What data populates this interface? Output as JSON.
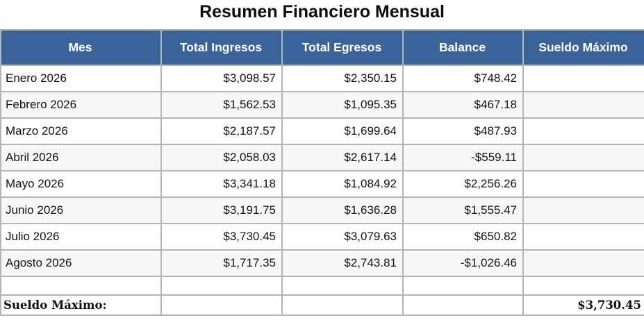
{
  "title": "Resumen Financiero Mensual",
  "colors": {
    "header_bg": "#3a639a",
    "header_text": "#ffffff",
    "row_alt_bg": "#f7f7f7",
    "border": "#b3b5b7",
    "text": "#111111"
  },
  "table": {
    "columns": [
      "Mes",
      "Total Ingresos",
      "Total Egresos",
      "Balance",
      "Sueldo Máximo"
    ],
    "rows": [
      {
        "mes": "Enero 2026",
        "ingresos": "$3,098.57",
        "egresos": "$2,350.15",
        "balance": "$748.42",
        "sueldo": ""
      },
      {
        "mes": "Febrero 2026",
        "ingresos": "$1,562.53",
        "egresos": "$1,095.35",
        "balance": "$467.18",
        "sueldo": ""
      },
      {
        "mes": "Marzo 2026",
        "ingresos": "$2,187.57",
        "egresos": "$1,699.64",
        "balance": "$487.93",
        "sueldo": ""
      },
      {
        "mes": "Abril 2026",
        "ingresos": "$2,058.03",
        "egresos": "$2,617.14",
        "balance": "-$559.11",
        "sueldo": ""
      },
      {
        "mes": "Mayo 2026",
        "ingresos": "$3,341.18",
        "egresos": "$1,084.92",
        "balance": "$2,256.26",
        "sueldo": ""
      },
      {
        "mes": "Junio 2026",
        "ingresos": "$3,191.75",
        "egresos": "$1,636.28",
        "balance": "$1,555.47",
        "sueldo": ""
      },
      {
        "mes": "Julio 2026",
        "ingresos": "$3,730.45",
        "egresos": "$3,079.63",
        "balance": "$650.82",
        "sueldo": ""
      },
      {
        "mes": "Agosto 2026",
        "ingresos": "$1,717.35",
        "egresos": "$2,743.81",
        "balance": "-$1,026.46",
        "sueldo": ""
      }
    ],
    "footer": {
      "label": "Sueldo Máximo:",
      "value": "$3,730.45"
    }
  },
  "chart_data": {
    "type": "table",
    "title": "Resumen Financiero Mensual",
    "columns": [
      "Mes",
      "Total Ingresos",
      "Total Egresos",
      "Balance",
      "Sueldo Máximo"
    ],
    "rows": [
      [
        "Enero 2026",
        3098.57,
        2350.15,
        748.42,
        null
      ],
      [
        "Febrero 2026",
        1562.53,
        1095.35,
        467.18,
        null
      ],
      [
        "Marzo 2026",
        2187.57,
        1699.64,
        487.93,
        null
      ],
      [
        "Abril 2026",
        2058.03,
        2617.14,
        -559.11,
        null
      ],
      [
        "Mayo 2026",
        3341.18,
        1084.92,
        2256.26,
        null
      ],
      [
        "Junio 2026",
        3191.75,
        1636.28,
        1555.47,
        null
      ],
      [
        "Julio 2026",
        3730.45,
        3079.63,
        650.82,
        null
      ],
      [
        "Agosto 2026",
        1717.35,
        2743.81,
        -1026.46,
        null
      ]
    ],
    "summary": {
      "label": "Sueldo Máximo:",
      "value": 3730.45
    },
    "currency": "USD"
  }
}
